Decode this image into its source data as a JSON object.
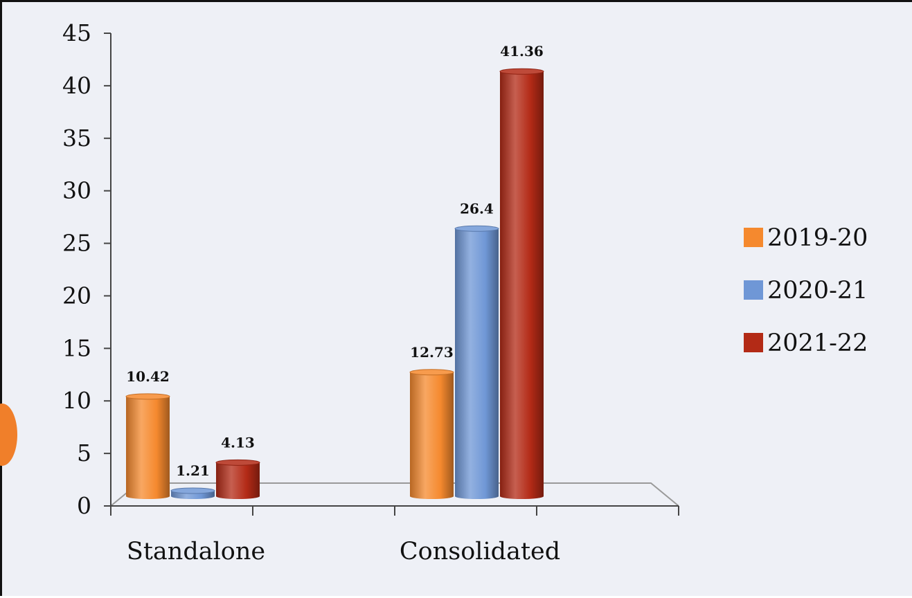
{
  "chart_data": {
    "type": "bar",
    "categories": [
      "Standalone",
      "Consolidated"
    ],
    "series": [
      {
        "name": "2019-20",
        "values": [
          10.42,
          12.73
        ],
        "labels": [
          "10.42",
          "12.73"
        ],
        "color": "#f5892e"
      },
      {
        "name": "2020-21",
        "values": [
          1.21,
          26.4
        ],
        "labels": [
          "1.21",
          "26.4"
        ],
        "color": "#6f97d6"
      },
      {
        "name": "2021-22",
        "values": [
          4.13,
          41.36
        ],
        "labels": [
          "4.13",
          "41.36"
        ],
        "color": "#b32a16"
      }
    ],
    "yticks": [
      "0",
      "5",
      "10",
      "15",
      "20",
      "25",
      "30",
      "35",
      "40",
      "45"
    ],
    "ylim": [
      0,
      45
    ],
    "title": "",
    "xlabel": "",
    "ylabel": "",
    "legend_position": "right",
    "grid": false,
    "style": "3d-cylinder"
  },
  "colors": {
    "background": "#eef0f6",
    "axis": "#444444",
    "side_marker": "#f07f2a"
  }
}
